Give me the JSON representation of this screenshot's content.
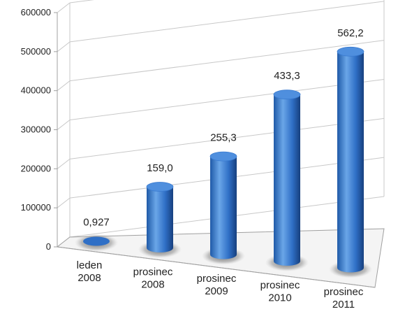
{
  "chart_data": {
    "type": "bar",
    "style": "3d-cylinder",
    "categories": [
      [
        "leden",
        "2008"
      ],
      [
        "prosinec",
        "2008"
      ],
      [
        "prosinec",
        "2009"
      ],
      [
        "prosinec",
        "2010"
      ],
      [
        "prosinec",
        "2011"
      ]
    ],
    "values": [
      927,
      159000,
      255300,
      433300,
      562200
    ],
    "data_labels": [
      "0,927",
      "159,0",
      "255,3",
      "433,3",
      "562,2"
    ],
    "ylim": [
      0,
      600000
    ],
    "yticks": [
      "0",
      "100000",
      "200000",
      "300000",
      "400000",
      "500000",
      "600000"
    ],
    "grid": true,
    "legend": "none",
    "colors": {
      "bar_light": "#6aa6e8",
      "bar_mid": "#2f6fc6",
      "bar_dark": "#1c4a8e",
      "top": "#4f8fde",
      "grid": "#c8c8c8",
      "axis": "#a0a0a0"
    }
  }
}
